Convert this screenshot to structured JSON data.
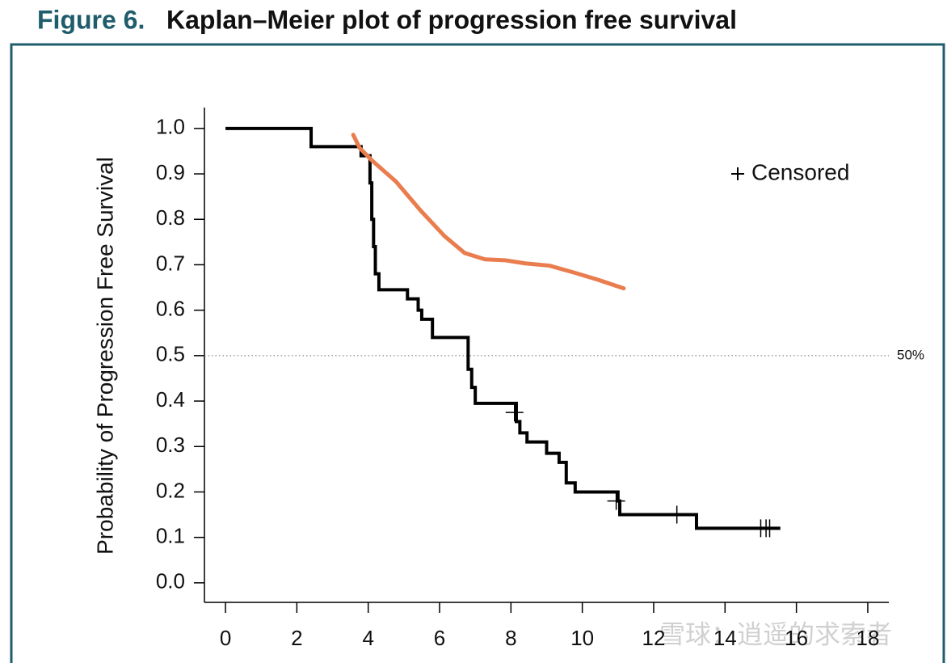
{
  "chart_data": {
    "type": "line",
    "figure_label": "Figure 6.",
    "title": "Kaplan–Meier plot of progression free survival",
    "ylabel": "Probability of Progression Free Survival",
    "xlim": [
      -0.59,
      18.59
    ],
    "ylim": [
      -0.043,
      1.046
    ],
    "xticks": [
      0,
      2,
      4,
      6,
      8,
      10,
      12,
      14,
      16,
      18
    ],
    "yticks": [
      {
        "value": 0,
        "label": "0.0"
      },
      0.1,
      0.2,
      0.3,
      0.4,
      0.5,
      0.6,
      0.7,
      0.8,
      0.9,
      {
        "value": 1,
        "label": "1.0"
      }
    ],
    "reference_line": {
      "value": 0.5,
      "label": "50%"
    },
    "series": [
      {
        "type": "step",
        "color": "#000000",
        "x": [
          0,
          2.4,
          3.8,
          4.05,
          4.1,
          4.15,
          4.2,
          4.3,
          5.1,
          5.4,
          5.5,
          5.8,
          6.8,
          6.9,
          7.0,
          8.15,
          8.25,
          8.45,
          9.0,
          9.35,
          9.55,
          9.8,
          11.0,
          11.05,
          13.2,
          15.55
        ],
        "values": [
          1.0,
          0.96,
          0.94,
          0.88,
          0.8,
          0.74,
          0.68,
          0.645,
          0.625,
          0.6,
          0.58,
          0.54,
          0.47,
          0.43,
          0.395,
          0.355,
          0.33,
          0.31,
          0.285,
          0.265,
          0.22,
          0.2,
          0.18,
          0.15,
          0.12,
          0.12
        ]
      },
      {
        "type": "censor",
        "name": "Censored",
        "color": "#000000",
        "x": [
          8.1,
          10.95,
          12.65,
          15.0,
          15.15,
          15.25
        ],
        "values": [
          0.375,
          0.18,
          0.15,
          0.12,
          0.12,
          0.12
        ]
      },
      {
        "type": "line",
        "color": "#e97d4e",
        "x": [
          3.58,
          3.76,
          4.1,
          4.78,
          5.46,
          6.14,
          6.7,
          7.27,
          7.83,
          8.4,
          9.08,
          9.76,
          10.44,
          11.16
        ],
        "values": [
          0.986,
          0.957,
          0.93,
          0.883,
          0.82,
          0.763,
          0.726,
          0.712,
          0.71,
          0.703,
          0.698,
          0.683,
          0.667,
          0.648
        ]
      }
    ],
    "watermark": "雪球：逍遥的求索者"
  }
}
